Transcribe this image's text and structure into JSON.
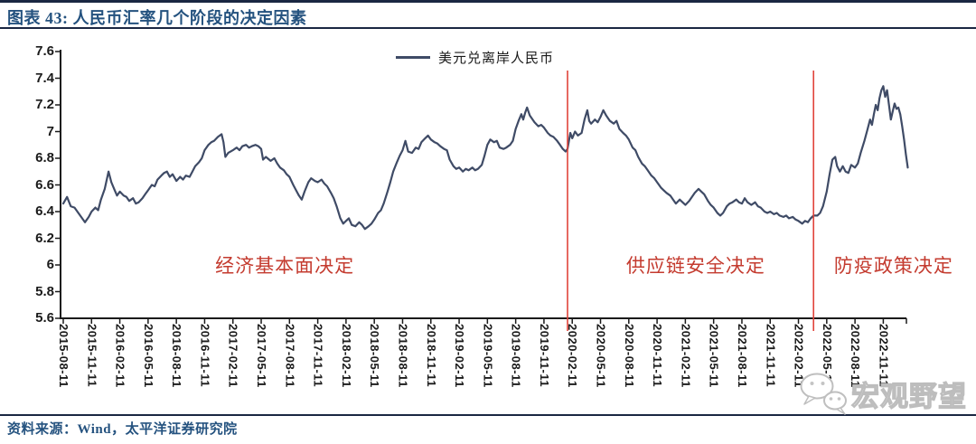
{
  "header": {
    "title": "图表 43: 人民币汇率几个阶段的决定因素"
  },
  "footer": {
    "source": "资料来源：Wind，太平洋证券研究院"
  },
  "watermark": {
    "text": "宏观野望",
    "icon": "wechat-icon"
  },
  "colors": {
    "title": "#24527F",
    "rule": "#1A2742",
    "series": "#3F4B66",
    "annotation_text": "#C43B2F",
    "event_line": "#E0433A",
    "axis": "#1A1A1A",
    "watermark": "#BFBFBF"
  },
  "chart_data": {
    "type": "line",
    "title": "",
    "legend_position": "top-center",
    "grid": false,
    "ylim": [
      5.6,
      7.6
    ],
    "y_tick_labels": [
      "7.6",
      "7.4",
      "7.2",
      "7",
      "6.8",
      "6.6",
      "6.4",
      "6.2",
      "6",
      "5.8",
      "5.6"
    ],
    "x_tick_labels": [
      "2015-08-11",
      "2015-11-11",
      "2016-02-11",
      "2016-05-11",
      "2016-08-11",
      "2016-11-11",
      "2017-02-11",
      "2017-05-11",
      "2017-08-11",
      "2017-11-11",
      "2018-02-11",
      "2018-05-11",
      "2018-08-11",
      "2018-11-11",
      "2019-02-11",
      "2019-05-11",
      "2019-08-11",
      "2019-11-11",
      "2020-02-11",
      "2020-05-11",
      "2020-08-11",
      "2020-11-11",
      "2021-02-11",
      "2021-05-11",
      "2021-08-11",
      "2021-11-11",
      "2022-02-11",
      "2022-05-11",
      "2022-08-11",
      "2022-11-11"
    ],
    "x_unit": "months since 2015-08-11",
    "series": [
      {
        "name": "美元兑离岸人民币",
        "color": "#3F4B66",
        "points": [
          [
            0,
            6.46
          ],
          [
            0.4,
            6.51
          ],
          [
            0.8,
            6.44
          ],
          [
            1.2,
            6.43
          ],
          [
            1.6,
            6.39
          ],
          [
            2,
            6.35
          ],
          [
            2.3,
            6.32
          ],
          [
            2.7,
            6.36
          ],
          [
            3,
            6.4
          ],
          [
            3.4,
            6.43
          ],
          [
            3.7,
            6.41
          ],
          [
            4,
            6.49
          ],
          [
            4.4,
            6.57
          ],
          [
            4.8,
            6.7
          ],
          [
            5.1,
            6.62
          ],
          [
            5.4,
            6.57
          ],
          [
            5.7,
            6.52
          ],
          [
            6,
            6.55
          ],
          [
            6.4,
            6.52
          ],
          [
            6.7,
            6.51
          ],
          [
            7,
            6.48
          ],
          [
            7.4,
            6.5
          ],
          [
            7.7,
            6.46
          ],
          [
            8,
            6.47
          ],
          [
            8.4,
            6.5
          ],
          [
            8.7,
            6.53
          ],
          [
            9,
            6.56
          ],
          [
            9.4,
            6.6
          ],
          [
            9.7,
            6.59
          ],
          [
            10,
            6.64
          ],
          [
            10.4,
            6.67
          ],
          [
            10.7,
            6.69
          ],
          [
            11,
            6.7
          ],
          [
            11.3,
            6.66
          ],
          [
            11.6,
            6.68
          ],
          [
            12,
            6.63
          ],
          [
            12.4,
            6.66
          ],
          [
            12.7,
            6.64
          ],
          [
            13,
            6.67
          ],
          [
            13.4,
            6.66
          ],
          [
            13.7,
            6.7
          ],
          [
            14,
            6.74
          ],
          [
            14.4,
            6.77
          ],
          [
            14.7,
            6.8
          ],
          [
            15,
            6.86
          ],
          [
            15.4,
            6.9
          ],
          [
            15.7,
            6.92
          ],
          [
            16,
            6.93
          ],
          [
            16.4,
            6.96
          ],
          [
            16.8,
            6.98
          ],
          [
            17,
            6.92
          ],
          [
            17.2,
            6.81
          ],
          [
            17.5,
            6.84
          ],
          [
            18,
            6.86
          ],
          [
            18.4,
            6.88
          ],
          [
            18.7,
            6.86
          ],
          [
            19,
            6.89
          ],
          [
            19.4,
            6.9
          ],
          [
            19.7,
            6.88
          ],
          [
            20,
            6.89
          ],
          [
            20.4,
            6.9
          ],
          [
            20.7,
            6.89
          ],
          [
            21,
            6.87
          ],
          [
            21.2,
            6.79
          ],
          [
            21.5,
            6.81
          ],
          [
            22,
            6.78
          ],
          [
            22.4,
            6.8
          ],
          [
            22.7,
            6.76
          ],
          [
            23,
            6.73
          ],
          [
            23.4,
            6.71
          ],
          [
            23.7,
            6.68
          ],
          [
            24,
            6.66
          ],
          [
            24.4,
            6.6
          ],
          [
            24.7,
            6.56
          ],
          [
            25,
            6.52
          ],
          [
            25.3,
            6.49
          ],
          [
            25.6,
            6.55
          ],
          [
            26,
            6.62
          ],
          [
            26.3,
            6.65
          ],
          [
            26.7,
            6.63
          ],
          [
            27,
            6.62
          ],
          [
            27.4,
            6.64
          ],
          [
            27.7,
            6.61
          ],
          [
            28,
            6.59
          ],
          [
            28.4,
            6.54
          ],
          [
            28.7,
            6.5
          ],
          [
            29,
            6.44
          ],
          [
            29.4,
            6.35
          ],
          [
            29.7,
            6.31
          ],
          [
            30,
            6.33
          ],
          [
            30.3,
            6.35
          ],
          [
            30.6,
            6.3
          ],
          [
            31,
            6.29
          ],
          [
            31.4,
            6.32
          ],
          [
            31.7,
            6.3
          ],
          [
            32,
            6.27
          ],
          [
            32.4,
            6.29
          ],
          [
            32.7,
            6.31
          ],
          [
            33,
            6.34
          ],
          [
            33.4,
            6.39
          ],
          [
            33.7,
            6.41
          ],
          [
            34,
            6.46
          ],
          [
            34.4,
            6.55
          ],
          [
            34.7,
            6.62
          ],
          [
            35,
            6.7
          ],
          [
            35.4,
            6.77
          ],
          [
            35.7,
            6.82
          ],
          [
            36,
            6.86
          ],
          [
            36.3,
            6.93
          ],
          [
            36.6,
            6.85
          ],
          [
            37,
            6.84
          ],
          [
            37.4,
            6.88
          ],
          [
            37.7,
            6.87
          ],
          [
            38,
            6.92
          ],
          [
            38.4,
            6.95
          ],
          [
            38.7,
            6.97
          ],
          [
            39,
            6.94
          ],
          [
            39.4,
            6.92
          ],
          [
            39.7,
            6.91
          ],
          [
            40,
            6.89
          ],
          [
            40.4,
            6.87
          ],
          [
            40.7,
            6.86
          ],
          [
            41,
            6.79
          ],
          [
            41.4,
            6.74
          ],
          [
            41.7,
            6.72
          ],
          [
            42,
            6.73
          ],
          [
            42.4,
            6.7
          ],
          [
            42.7,
            6.72
          ],
          [
            43,
            6.71
          ],
          [
            43.4,
            6.73
          ],
          [
            43.7,
            6.71
          ],
          [
            44,
            6.72
          ],
          [
            44.4,
            6.75
          ],
          [
            44.7,
            6.82
          ],
          [
            45,
            6.9
          ],
          [
            45.3,
            6.94
          ],
          [
            45.7,
            6.92
          ],
          [
            46,
            6.93
          ],
          [
            46.3,
            6.88
          ],
          [
            46.7,
            6.87
          ],
          [
            47,
            6.88
          ],
          [
            47.4,
            6.9
          ],
          [
            47.7,
            6.93
          ],
          [
            48,
            7.02
          ],
          [
            48.3,
            7.08
          ],
          [
            48.6,
            7.13
          ],
          [
            48.8,
            7.09
          ],
          [
            49,
            7.14
          ],
          [
            49.2,
            7.18
          ],
          [
            49.5,
            7.12
          ],
          [
            49.8,
            7.09
          ],
          [
            50,
            7.07
          ],
          [
            50.4,
            7.04
          ],
          [
            50.7,
            7.05
          ],
          [
            51,
            7.03
          ],
          [
            51.4,
            6.99
          ],
          [
            51.7,
            6.97
          ],
          [
            52,
            6.96
          ],
          [
            52.4,
            6.93
          ],
          [
            52.7,
            6.9
          ],
          [
            53,
            6.87
          ],
          [
            53.3,
            6.85
          ],
          [
            53.5,
            6.87
          ],
          [
            53.8,
            6.99
          ],
          [
            54,
            6.95
          ],
          [
            54.3,
            7.0
          ],
          [
            54.6,
            6.97
          ],
          [
            55,
            6.99
          ],
          [
            55.3,
            7.09
          ],
          [
            55.6,
            7.16
          ],
          [
            55.8,
            7.08
          ],
          [
            56,
            7.06
          ],
          [
            56.4,
            7.09
          ],
          [
            56.7,
            7.07
          ],
          [
            57,
            7.11
          ],
          [
            57.3,
            7.16
          ],
          [
            57.6,
            7.12
          ],
          [
            58,
            7.08
          ],
          [
            58.4,
            7.06
          ],
          [
            58.7,
            7.08
          ],
          [
            59,
            7.02
          ],
          [
            59.4,
            6.99
          ],
          [
            59.7,
            6.97
          ],
          [
            60,
            6.94
          ],
          [
            60.4,
            6.88
          ],
          [
            60.7,
            6.86
          ],
          [
            61,
            6.81
          ],
          [
            61.4,
            6.76
          ],
          [
            61.7,
            6.74
          ],
          [
            62,
            6.71
          ],
          [
            62.4,
            6.67
          ],
          [
            62.7,
            6.65
          ],
          [
            63,
            6.62
          ],
          [
            63.4,
            6.58
          ],
          [
            63.7,
            6.56
          ],
          [
            64,
            6.54
          ],
          [
            64.4,
            6.52
          ],
          [
            64.7,
            6.49
          ],
          [
            65,
            6.46
          ],
          [
            65.4,
            6.49
          ],
          [
            65.7,
            6.47
          ],
          [
            66,
            6.45
          ],
          [
            66.4,
            6.48
          ],
          [
            66.7,
            6.51
          ],
          [
            67,
            6.54
          ],
          [
            67.4,
            6.57
          ],
          [
            67.7,
            6.55
          ],
          [
            68,
            6.53
          ],
          [
            68.4,
            6.48
          ],
          [
            68.7,
            6.45
          ],
          [
            69,
            6.43
          ],
          [
            69.4,
            6.39
          ],
          [
            69.7,
            6.37
          ],
          [
            70,
            6.39
          ],
          [
            70.4,
            6.44
          ],
          [
            70.7,
            6.46
          ],
          [
            71,
            6.47
          ],
          [
            71.4,
            6.49
          ],
          [
            71.7,
            6.47
          ],
          [
            72,
            6.46
          ],
          [
            72.3,
            6.5
          ],
          [
            72.6,
            6.47
          ],
          [
            73,
            6.45
          ],
          [
            73.4,
            6.47
          ],
          [
            73.7,
            6.44
          ],
          [
            74,
            6.43
          ],
          [
            74.4,
            6.4
          ],
          [
            74.7,
            6.39
          ],
          [
            75,
            6.4
          ],
          [
            75.4,
            6.38
          ],
          [
            75.7,
            6.39
          ],
          [
            76,
            6.37
          ],
          [
            76.4,
            6.36
          ],
          [
            76.7,
            6.37
          ],
          [
            77,
            6.35
          ],
          [
            77.4,
            6.36
          ],
          [
            77.7,
            6.34
          ],
          [
            78,
            6.33
          ],
          [
            78.4,
            6.31
          ],
          [
            78.7,
            6.33
          ],
          [
            79,
            6.32
          ],
          [
            79.3,
            6.35
          ],
          [
            79.6,
            6.37
          ],
          [
            80,
            6.37
          ],
          [
            80.3,
            6.39
          ],
          [
            80.6,
            6.44
          ],
          [
            81,
            6.55
          ],
          [
            81.3,
            6.68
          ],
          [
            81.6,
            6.79
          ],
          [
            81.9,
            6.81
          ],
          [
            82.1,
            6.74
          ],
          [
            82.4,
            6.7
          ],
          [
            82.7,
            6.74
          ],
          [
            83,
            6.7
          ],
          [
            83.3,
            6.69
          ],
          [
            83.6,
            6.75
          ],
          [
            84,
            6.73
          ],
          [
            84.3,
            6.76
          ],
          [
            84.6,
            6.84
          ],
          [
            85,
            6.93
          ],
          [
            85.3,
            7.01
          ],
          [
            85.6,
            7.09
          ],
          [
            85.8,
            7.05
          ],
          [
            86,
            7.13
          ],
          [
            86.2,
            7.2
          ],
          [
            86.4,
            7.16
          ],
          [
            86.6,
            7.25
          ],
          [
            86.8,
            7.31
          ],
          [
            87,
            7.34
          ],
          [
            87.2,
            7.26
          ],
          [
            87.4,
            7.31
          ],
          [
            87.6,
            7.2
          ],
          [
            87.8,
            7.09
          ],
          [
            88,
            7.15
          ],
          [
            88.2,
            7.21
          ],
          [
            88.4,
            7.17
          ],
          [
            88.6,
            7.18
          ],
          [
            88.8,
            7.13
          ],
          [
            89,
            7.04
          ],
          [
            89.2,
            6.94
          ],
          [
            89.4,
            6.83
          ],
          [
            89.6,
            6.73
          ]
        ]
      }
    ],
    "vlines": [
      {
        "x_month": 53.5,
        "color": "#E0433A"
      },
      {
        "x_month": 79.6,
        "color": "#E0433A"
      }
    ],
    "annotations": [
      {
        "text": "经济基本面决定",
        "x_month": 23.5,
        "y_value": 6.0
      },
      {
        "text": "供应链安全决定",
        "x_month": 67.1,
        "y_value": 6.0
      },
      {
        "text": "防疫政策决定",
        "x_month": 88.1,
        "y_value": 6.0
      }
    ]
  }
}
